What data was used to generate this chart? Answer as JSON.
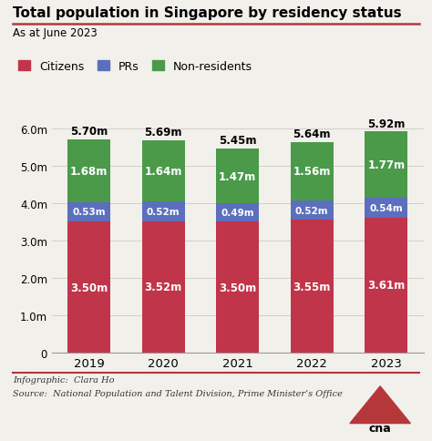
{
  "title": "Total population in Singapore by residency status",
  "subtitle": "As at June 2023",
  "years": [
    2019,
    2020,
    2021,
    2022,
    2023
  ],
  "citizens": [
    3.5,
    3.52,
    3.5,
    3.55,
    3.61
  ],
  "prs": [
    0.53,
    0.52,
    0.49,
    0.52,
    0.54
  ],
  "non_residents": [
    1.68,
    1.64,
    1.47,
    1.56,
    1.77
  ],
  "citizen_labels": [
    "3.50m",
    "3.52m",
    "3.50m",
    "3.55m",
    "3.61m"
  ],
  "pr_labels": [
    "0.53m",
    "0.52m",
    "0.49m",
    "0.52m",
    "0.54m"
  ],
  "nr_labels": [
    "1.68m",
    "1.64m",
    "1.47m",
    "1.56m",
    "1.77m"
  ],
  "total_labels": [
    "5.70m",
    "5.69m",
    "5.45m",
    "5.64m",
    "5.92m"
  ],
  "color_citizens": "#c0354a",
  "color_prs": "#5b6fbd",
  "color_non_residents": "#4a9a4a",
  "ylim": [
    0,
    6.5
  ],
  "yticks": [
    0,
    1.0,
    2.0,
    3.0,
    4.0,
    5.0,
    6.0
  ],
  "ytick_labels": [
    "0",
    "1.0m",
    "2.0m",
    "3.0m",
    "4.0m",
    "5.0m",
    "6.0m"
  ],
  "bg_color": "#f2f0eb",
  "footer_infographic": "Infographic:  Clara Ho",
  "footer_source": "Source:  National Population and Talent Division, Prime Minister’s Office",
  "bar_width": 0.58,
  "title_line_color": "#b5373a",
  "footer_line_color": "#b5373a"
}
